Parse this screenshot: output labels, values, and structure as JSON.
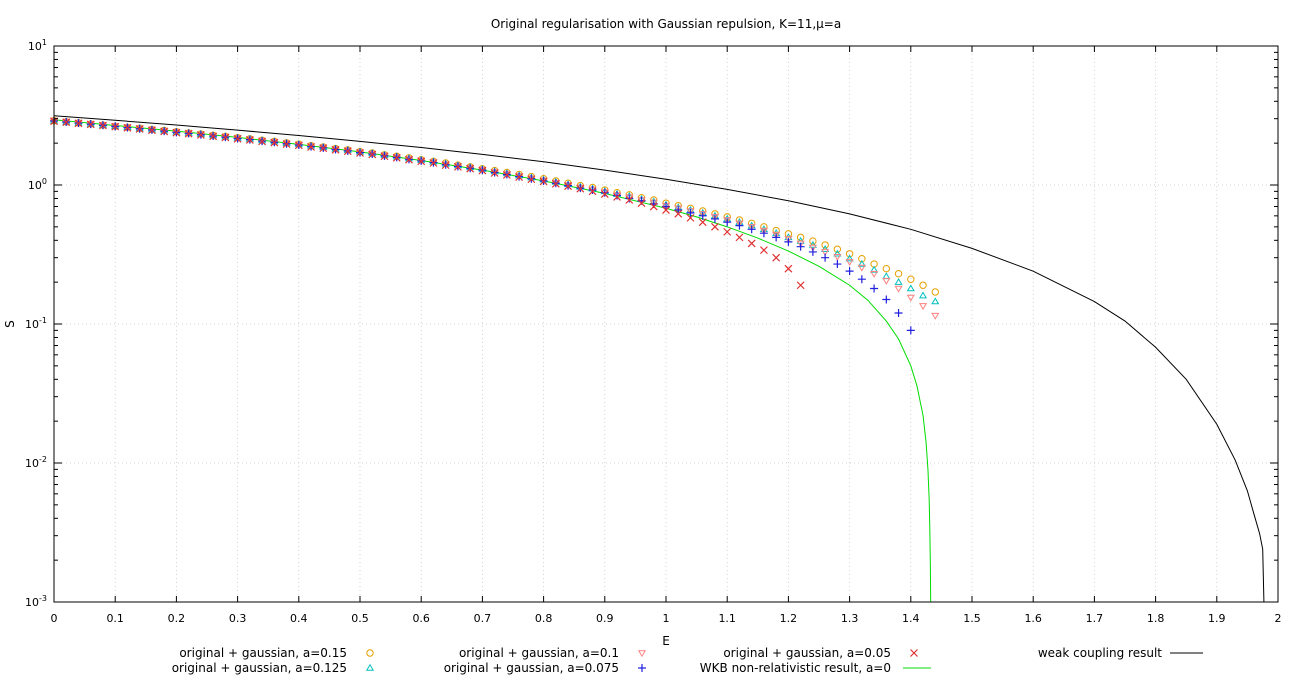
{
  "chart_data": {
    "type": "scatter",
    "title": "Original regularisation with Gaussian repulsion, K=11,μ=a",
    "xlabel": "E",
    "ylabel": "S",
    "xlim": [
      0,
      2
    ],
    "ylim": [
      0.001,
      10
    ],
    "yscale": "log",
    "grid": true,
    "legend_position": "bottom",
    "x_ticks": [
      "0",
      "0.1",
      "0.2",
      "0.3",
      "0.4",
      "0.5",
      "0.6",
      "0.7",
      "0.8",
      "0.9",
      "1",
      "1.1",
      "1.2",
      "1.3",
      "1.4",
      "1.5",
      "1.6",
      "1.7",
      "1.8",
      "1.9",
      "2"
    ],
    "y_ticks": [
      {
        "base": "10",
        "exp": "1"
      },
      {
        "base": "10",
        "exp": "0"
      },
      {
        "base": "10",
        "exp": "-1"
      },
      {
        "base": "10",
        "exp": "-2"
      },
      {
        "base": "10",
        "exp": "-3"
      }
    ],
    "series": [
      {
        "name": "original + gaussian, a=0.15",
        "marker": "circle",
        "color": "#e69f00",
        "x": [
          0.0,
          0.02,
          0.04,
          0.06,
          0.08,
          0.1,
          0.12,
          0.14,
          0.16,
          0.18,
          0.2,
          0.22,
          0.24,
          0.26,
          0.28,
          0.3,
          0.32,
          0.34,
          0.36,
          0.38,
          0.4,
          0.42,
          0.44,
          0.46,
          0.48,
          0.5,
          0.52,
          0.54,
          0.56,
          0.58,
          0.6,
          0.62,
          0.64,
          0.66,
          0.68,
          0.7,
          0.72,
          0.74,
          0.76,
          0.78,
          0.8,
          0.82,
          0.84,
          0.86,
          0.88,
          0.9,
          0.92,
          0.94,
          0.96,
          0.98,
          1.0,
          1.02,
          1.04,
          1.06,
          1.08,
          1.1,
          1.12,
          1.14,
          1.16,
          1.18,
          1.2,
          1.22,
          1.24,
          1.26,
          1.28,
          1.3,
          1.32,
          1.34,
          1.36,
          1.38,
          1.4,
          1.42,
          1.44
        ],
        "y": [
          2.9,
          2.85,
          2.8,
          2.75,
          2.7,
          2.65,
          2.6,
          2.56,
          2.51,
          2.47,
          2.42,
          2.37,
          2.33,
          2.28,
          2.24,
          2.19,
          2.15,
          2.1,
          2.06,
          2.01,
          1.97,
          1.92,
          1.88,
          1.83,
          1.79,
          1.74,
          1.7,
          1.65,
          1.61,
          1.57,
          1.52,
          1.48,
          1.44,
          1.39,
          1.35,
          1.31,
          1.27,
          1.23,
          1.19,
          1.15,
          1.11,
          1.07,
          1.03,
          0.99,
          0.96,
          0.92,
          0.88,
          0.85,
          0.81,
          0.78,
          0.74,
          0.71,
          0.68,
          0.65,
          0.62,
          0.59,
          0.56,
          0.53,
          0.5,
          0.47,
          0.445,
          0.42,
          0.395,
          0.37,
          0.345,
          0.32,
          0.295,
          0.27,
          0.25,
          0.23,
          0.21,
          0.19,
          0.17
        ]
      },
      {
        "name": "original + gaussian, a=0.125",
        "marker": "triangle-up",
        "color": "#00c0c0",
        "x": [
          0.0,
          0.02,
          0.04,
          0.06,
          0.08,
          0.1,
          0.12,
          0.14,
          0.16,
          0.18,
          0.2,
          0.22,
          0.24,
          0.26,
          0.28,
          0.3,
          0.32,
          0.34,
          0.36,
          0.38,
          0.4,
          0.42,
          0.44,
          0.46,
          0.48,
          0.5,
          0.52,
          0.54,
          0.56,
          0.58,
          0.6,
          0.62,
          0.64,
          0.66,
          0.68,
          0.7,
          0.72,
          0.74,
          0.76,
          0.78,
          0.8,
          0.82,
          0.84,
          0.86,
          0.88,
          0.9,
          0.92,
          0.94,
          0.96,
          0.98,
          1.0,
          1.02,
          1.04,
          1.06,
          1.08,
          1.1,
          1.12,
          1.14,
          1.16,
          1.18,
          1.2,
          1.22,
          1.24,
          1.26,
          1.28,
          1.3,
          1.32,
          1.34,
          1.36,
          1.38,
          1.4,
          1.42,
          1.44
        ],
        "y": [
          2.9,
          2.85,
          2.8,
          2.75,
          2.7,
          2.65,
          2.6,
          2.55,
          2.5,
          2.46,
          2.41,
          2.36,
          2.32,
          2.27,
          2.23,
          2.18,
          2.14,
          2.09,
          2.05,
          2.0,
          1.96,
          1.91,
          1.87,
          1.82,
          1.78,
          1.73,
          1.69,
          1.64,
          1.6,
          1.55,
          1.51,
          1.47,
          1.42,
          1.38,
          1.34,
          1.3,
          1.25,
          1.21,
          1.17,
          1.13,
          1.09,
          1.05,
          1.01,
          0.97,
          0.94,
          0.9,
          0.86,
          0.83,
          0.79,
          0.76,
          0.72,
          0.69,
          0.66,
          0.63,
          0.6,
          0.57,
          0.54,
          0.51,
          0.48,
          0.45,
          0.42,
          0.395,
          0.37,
          0.345,
          0.32,
          0.295,
          0.27,
          0.245,
          0.22,
          0.2,
          0.18,
          0.16,
          0.145
        ]
      },
      {
        "name": "original + gaussian, a=0.1",
        "marker": "triangle-down",
        "color": "#ff8080",
        "x": [
          0.0,
          0.02,
          0.04,
          0.06,
          0.08,
          0.1,
          0.12,
          0.14,
          0.16,
          0.18,
          0.2,
          0.22,
          0.24,
          0.26,
          0.28,
          0.3,
          0.32,
          0.34,
          0.36,
          0.38,
          0.4,
          0.42,
          0.44,
          0.46,
          0.48,
          0.5,
          0.52,
          0.54,
          0.56,
          0.58,
          0.6,
          0.62,
          0.64,
          0.66,
          0.68,
          0.7,
          0.72,
          0.74,
          0.76,
          0.78,
          0.8,
          0.82,
          0.84,
          0.86,
          0.88,
          0.9,
          0.92,
          0.94,
          0.96,
          0.98,
          1.0,
          1.02,
          1.04,
          1.06,
          1.08,
          1.1,
          1.12,
          1.14,
          1.16,
          1.18,
          1.2,
          1.22,
          1.24,
          1.26,
          1.28,
          1.3,
          1.32,
          1.34,
          1.36,
          1.38,
          1.4,
          1.42,
          1.44
        ],
        "y": [
          2.9,
          2.85,
          2.8,
          2.75,
          2.7,
          2.65,
          2.6,
          2.55,
          2.5,
          2.45,
          2.4,
          2.36,
          2.31,
          2.26,
          2.22,
          2.17,
          2.13,
          2.08,
          2.04,
          1.99,
          1.95,
          1.9,
          1.86,
          1.81,
          1.77,
          1.72,
          1.68,
          1.63,
          1.59,
          1.54,
          1.5,
          1.46,
          1.41,
          1.37,
          1.33,
          1.29,
          1.24,
          1.2,
          1.16,
          1.12,
          1.08,
          1.04,
          1.0,
          0.96,
          0.93,
          0.89,
          0.85,
          0.82,
          0.78,
          0.75,
          0.71,
          0.68,
          0.65,
          0.62,
          0.59,
          0.56,
          0.53,
          0.5,
          0.47,
          0.44,
          0.41,
          0.38,
          0.355,
          0.33,
          0.305,
          0.28,
          0.255,
          0.23,
          0.205,
          0.18,
          0.155,
          0.135,
          0.115
        ]
      },
      {
        "name": "original + gaussian, a=0.075",
        "marker": "plus",
        "color": "#2020e0",
        "x": [
          0.0,
          0.02,
          0.04,
          0.06,
          0.08,
          0.1,
          0.12,
          0.14,
          0.16,
          0.18,
          0.2,
          0.22,
          0.24,
          0.26,
          0.28,
          0.3,
          0.32,
          0.34,
          0.36,
          0.38,
          0.4,
          0.42,
          0.44,
          0.46,
          0.48,
          0.5,
          0.52,
          0.54,
          0.56,
          0.58,
          0.6,
          0.62,
          0.64,
          0.66,
          0.68,
          0.7,
          0.72,
          0.74,
          0.76,
          0.78,
          0.8,
          0.82,
          0.84,
          0.86,
          0.88,
          0.9,
          0.92,
          0.94,
          0.96,
          0.98,
          1.0,
          1.02,
          1.04,
          1.06,
          1.08,
          1.1,
          1.12,
          1.14,
          1.16,
          1.18,
          1.2,
          1.22,
          1.24,
          1.26,
          1.28,
          1.3,
          1.32,
          1.34,
          1.36,
          1.38,
          1.4
        ],
        "y": [
          2.89,
          2.84,
          2.79,
          2.74,
          2.69,
          2.64,
          2.59,
          2.54,
          2.49,
          2.44,
          2.39,
          2.35,
          2.3,
          2.25,
          2.21,
          2.16,
          2.12,
          2.07,
          2.03,
          1.98,
          1.94,
          1.89,
          1.85,
          1.8,
          1.76,
          1.71,
          1.67,
          1.62,
          1.58,
          1.53,
          1.49,
          1.45,
          1.4,
          1.36,
          1.32,
          1.28,
          1.23,
          1.19,
          1.15,
          1.11,
          1.07,
          1.03,
          0.99,
          0.95,
          0.92,
          0.88,
          0.84,
          0.8,
          0.77,
          0.73,
          0.7,
          0.66,
          0.63,
          0.6,
          0.57,
          0.54,
          0.51,
          0.48,
          0.45,
          0.42,
          0.39,
          0.36,
          0.33,
          0.3,
          0.27,
          0.24,
          0.21,
          0.18,
          0.15,
          0.12,
          0.09
        ]
      },
      {
        "name": "original + gaussian, a=0.05",
        "marker": "cross",
        "color": "#e03030",
        "x": [
          0.0,
          0.02,
          0.04,
          0.06,
          0.08,
          0.1,
          0.12,
          0.14,
          0.16,
          0.18,
          0.2,
          0.22,
          0.24,
          0.26,
          0.28,
          0.3,
          0.32,
          0.34,
          0.36,
          0.38,
          0.4,
          0.42,
          0.44,
          0.46,
          0.48,
          0.5,
          0.52,
          0.54,
          0.56,
          0.58,
          0.6,
          0.62,
          0.64,
          0.66,
          0.68,
          0.7,
          0.72,
          0.74,
          0.76,
          0.78,
          0.8,
          0.82,
          0.84,
          0.86,
          0.88,
          0.9,
          0.92,
          0.94,
          0.96,
          0.98,
          1.0,
          1.02,
          1.04,
          1.06,
          1.08,
          1.1,
          1.12,
          1.14,
          1.16,
          1.18,
          1.2,
          1.22
        ],
        "y": [
          2.88,
          2.83,
          2.78,
          2.73,
          2.68,
          2.63,
          2.58,
          2.53,
          2.48,
          2.43,
          2.38,
          2.34,
          2.29,
          2.24,
          2.2,
          2.15,
          2.11,
          2.06,
          2.02,
          1.97,
          1.93,
          1.88,
          1.84,
          1.79,
          1.75,
          1.7,
          1.66,
          1.61,
          1.57,
          1.52,
          1.48,
          1.44,
          1.39,
          1.35,
          1.31,
          1.27,
          1.22,
          1.18,
          1.14,
          1.1,
          1.06,
          1.02,
          0.98,
          0.94,
          0.9,
          0.86,
          0.82,
          0.78,
          0.74,
          0.7,
          0.66,
          0.62,
          0.58,
          0.54,
          0.5,
          0.46,
          0.42,
          0.38,
          0.34,
          0.3,
          0.25,
          0.19
        ]
      },
      {
        "name": "WKB non-relativistic result, a=0",
        "marker": "line",
        "color": "#00dd00",
        "x": [
          0.0,
          0.1,
          0.2,
          0.3,
          0.4,
          0.5,
          0.6,
          0.7,
          0.8,
          0.9,
          1.0,
          1.05,
          1.1,
          1.15,
          1.2,
          1.25,
          1.3,
          1.33,
          1.36,
          1.38,
          1.4,
          1.41,
          1.42,
          1.425,
          1.428,
          1.43,
          1.431,
          1.432,
          1.4325
        ],
        "y": [
          2.95,
          2.68,
          2.44,
          2.2,
          1.96,
          1.73,
          1.5,
          1.28,
          1.07,
          0.87,
          0.68,
          0.59,
          0.5,
          0.415,
          0.335,
          0.26,
          0.19,
          0.148,
          0.105,
          0.078,
          0.05,
          0.036,
          0.022,
          0.014,
          0.009,
          0.0055,
          0.0035,
          0.0018,
          0.001
        ]
      },
      {
        "name": "weak coupling result",
        "marker": "line",
        "color": "#000000",
        "x": [
          0.0,
          0.1,
          0.2,
          0.3,
          0.4,
          0.5,
          0.6,
          0.7,
          0.8,
          0.9,
          1.0,
          1.1,
          1.2,
          1.3,
          1.4,
          1.5,
          1.6,
          1.7,
          1.75,
          1.8,
          1.85,
          1.9,
          1.93,
          1.95,
          1.96,
          1.97,
          1.975,
          1.977
        ],
        "y": [
          3.15,
          2.92,
          2.7,
          2.48,
          2.27,
          2.06,
          1.86,
          1.66,
          1.47,
          1.28,
          1.1,
          0.93,
          0.77,
          0.62,
          0.48,
          0.35,
          0.24,
          0.145,
          0.105,
          0.068,
          0.04,
          0.019,
          0.0105,
          0.0063,
          0.0044,
          0.0031,
          0.0024,
          0.001
        ]
      }
    ]
  }
}
